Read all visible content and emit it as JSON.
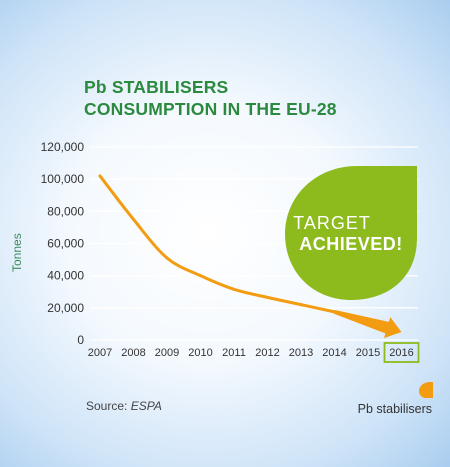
{
  "chart_data": {
    "type": "line",
    "title_lines": [
      "Pb STABILISERS",
      "CONSUMPTION IN THE EU-28"
    ],
    "ylabel": "Tonnes",
    "xlabel": "",
    "x": [
      "2007",
      "2008",
      "2009",
      "2010",
      "2011",
      "2012",
      "2013",
      "2014",
      "2015",
      "2016"
    ],
    "y": [
      102000,
      75000,
      51000,
      40000,
      31500,
      26500,
      22000,
      17500,
      null,
      null
    ],
    "target_arrow": {
      "from_x": "2014",
      "from_y": 17500,
      "to_x": "2016",
      "to_y": 5000
    },
    "highlighted_x": "2016",
    "ylim": [
      0,
      120000
    ],
    "yticks": [
      0,
      20000,
      40000,
      60000,
      80000,
      100000,
      120000
    ],
    "ytick_labels": [
      "0",
      "20,000",
      "40,000",
      "60,000",
      "80,000",
      "100,000",
      "120,000"
    ],
    "grid": true,
    "series": [
      {
        "name": "Pb stabilisers",
        "color": "#f39c12"
      }
    ],
    "legend_position": "bottom-right",
    "callout": {
      "line1": "TARGET",
      "line2": "ACHIEVED!",
      "color": "#8dbb1e"
    },
    "source_prefix": "Source:",
    "source_name": "ESPA"
  },
  "colors": {
    "title": "#2b8a3e",
    "line": "#f39c12",
    "grid": "#ffffff",
    "highlight_box": "#8dbb1e"
  }
}
